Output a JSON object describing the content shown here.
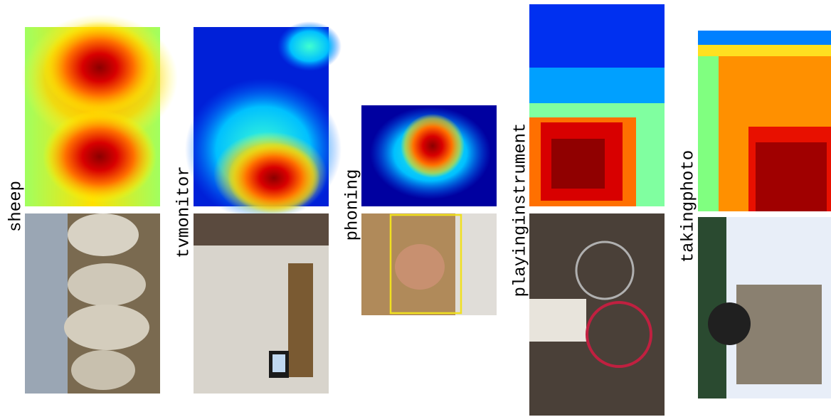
{
  "panels": [
    {
      "label": "sheep"
    },
    {
      "label": "tvmonitor"
    },
    {
      "label": "phoning"
    },
    {
      "label": "playinginstrument"
    },
    {
      "label": "takingphoto"
    }
  ]
}
